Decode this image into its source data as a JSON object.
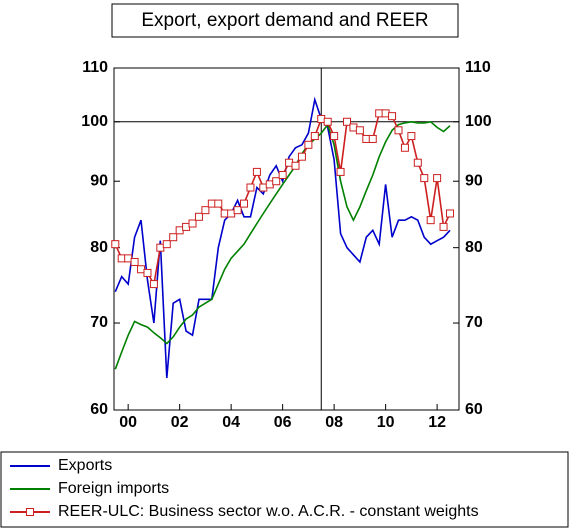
{
  "chart_data": {
    "type": "line",
    "title": "Export, export demand and REER",
    "log_y": true,
    "x": [
      2000,
      2000.25,
      2000.5,
      2000.75,
      2001,
      2001.25,
      2001.5,
      2001.75,
      2002,
      2002.25,
      2002.5,
      2002.75,
      2003,
      2003.25,
      2003.5,
      2003.75,
      2004,
      2004.25,
      2004.5,
      2004.75,
      2005,
      2005.25,
      2005.5,
      2005.75,
      2006,
      2006.25,
      2006.5,
      2006.75,
      2007,
      2007.25,
      2007.5,
      2007.75,
      2008,
      2008.25,
      2008.5,
      2008.75,
      2009,
      2009.25,
      2009.5,
      2009.75,
      2010,
      2010.25,
      2010.5,
      2010.75,
      2011,
      2011.25,
      2011.5,
      2011.75,
      2012,
      2012.25,
      2012.5,
      2012.75,
      2013
    ],
    "xlim": [
      1999.95,
      2013.35
    ],
    "xticks": [
      {
        "value": 2000.5,
        "label": "00"
      },
      {
        "value": 2002.5,
        "label": "02"
      },
      {
        "value": 2004.5,
        "label": "04"
      },
      {
        "value": 2006.5,
        "label": "06"
      },
      {
        "value": 2008.5,
        "label": "08"
      },
      {
        "value": 2010.5,
        "label": "10"
      },
      {
        "value": 2012.5,
        "label": "12"
      }
    ],
    "ylim": [
      60,
      110
    ],
    "yticks": [
      60,
      70,
      80,
      90,
      100,
      110
    ],
    "y2lim": [
      60,
      110
    ],
    "y2ticks": [
      60,
      70,
      80,
      90,
      100,
      110
    ],
    "reference_lines": {
      "y": 100,
      "x": 2008
    },
    "series": [
      {
        "name": "Exports",
        "color": "#0000cc",
        "marker": false,
        "values": [
          74,
          76,
          75,
          81.5,
          84,
          75.5,
          70,
          81,
          63.5,
          72.5,
          73,
          69,
          68.5,
          73,
          73,
          73,
          80,
          84,
          85,
          87,
          84.5,
          84.5,
          89,
          88,
          91,
          92.5,
          90,
          94,
          95.5,
          96,
          98,
          104,
          100.5,
          99,
          93.5,
          82,
          80,
          79,
          78,
          81.5,
          82.5,
          80.5,
          89.5,
          81.5,
          84,
          84,
          84.5,
          84,
          81.5,
          80.5,
          81,
          81.5,
          82.5
        ]
      },
      {
        "name": "Foreign imports",
        "color": "#008000",
        "marker": false,
        "values": [
          64.5,
          66.5,
          68.5,
          70.2,
          69.8,
          69.5,
          68.8,
          68.2,
          67.5,
          68.3,
          69.5,
          70.5,
          71,
          72,
          72.5,
          73,
          75,
          77,
          78.5,
          79.5,
          80.5,
          82,
          83.5,
          85,
          86.5,
          88,
          89.5,
          91,
          92.5,
          94.5,
          96,
          97,
          98,
          99.5,
          96,
          90,
          86,
          84,
          86,
          88.5,
          91,
          94,
          96.5,
          98.5,
          99.5,
          99.8,
          100,
          99.8,
          99.8,
          100,
          99,
          98.3,
          99.3
        ]
      },
      {
        "name": "REER-ULC: Business sector w.o. A.C.R. - constant weights",
        "color": "#cc2020",
        "marker": true,
        "values": [
          80.5,
          78.5,
          78.5,
          78,
          77,
          76.5,
          75,
          80,
          80.5,
          81.5,
          82.5,
          83,
          83.5,
          84.5,
          85.5,
          86.5,
          86.5,
          85,
          85,
          85.5,
          86.5,
          89,
          91.5,
          89,
          89.5,
          90,
          91,
          93,
          92.5,
          94,
          96,
          97.5,
          100.5,
          100,
          97.5,
          91.5,
          100,
          99,
          98.5,
          97,
          97,
          101.5,
          101.5,
          101,
          98.5,
          95.5,
          97.5,
          93,
          90.5,
          84,
          90.5,
          83,
          85
        ]
      }
    ]
  }
}
